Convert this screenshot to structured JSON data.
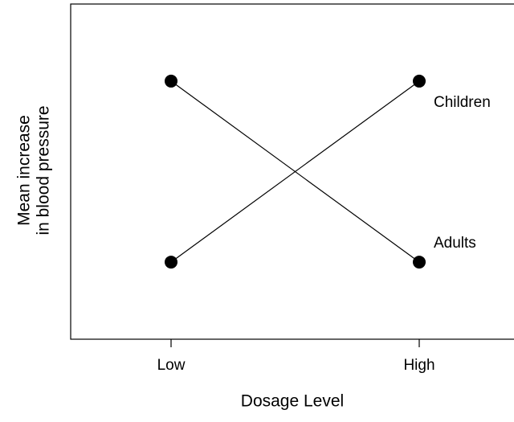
{
  "chart_data": {
    "type": "line",
    "xlabel": "Dosage Level",
    "ylabel": [
      "Mean increase",
      "in blood pressure"
    ],
    "categories": [
      "Low",
      "High"
    ],
    "series": [
      {
        "name": "Children",
        "color": "#000000",
        "values": [
          0.23,
          0.77
        ]
      },
      {
        "name": "Adults",
        "color": "#000000",
        "values": [
          0.77,
          0.23
        ]
      }
    ],
    "ylim": [
      0,
      1
    ]
  }
}
